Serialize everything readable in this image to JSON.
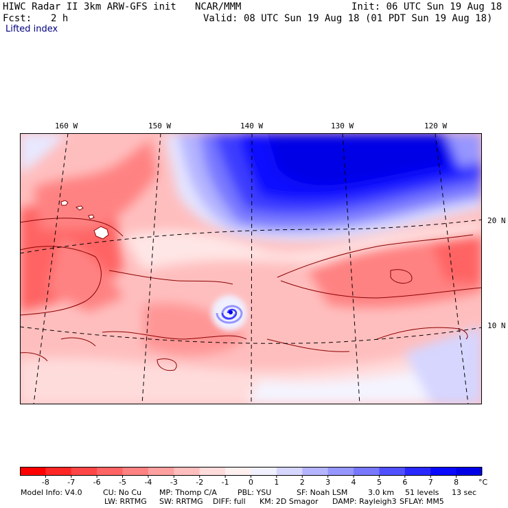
{
  "header": {
    "title": "HIWC Radar II 3km ARW-GFS init",
    "org": "NCAR/MMM",
    "init": "Init: 06 UTC Sun 19 Aug 18",
    "fcst_label": "Fcst:",
    "fcst_value": "2 h",
    "valid": "Valid: 08 UTC Sun 19 Aug 18 (01 PDT Sun 19 Aug 18)",
    "field": "Lifted index"
  },
  "map": {
    "lon_labels": [
      "160 W",
      "150 W",
      "140 W",
      "130 W",
      "120 W"
    ],
    "lat_labels": [
      "20 N",
      "10 N"
    ],
    "colors": {
      "coastline": "#8b0000",
      "grid": "#000000"
    }
  },
  "colorbar": {
    "ticks": [
      "-8",
      "-7",
      "-6",
      "-5",
      "-4",
      "-3",
      "-2",
      "-1",
      "0",
      "1",
      "2",
      "3",
      "4",
      "5",
      "6",
      "7",
      "8"
    ],
    "unit": "°C",
    "colors": [
      "#ff0000",
      "#ff2626",
      "#ff4646",
      "#ff6464",
      "#ff8282",
      "#ffa0a0",
      "#ffbebe",
      "#ffdcdc",
      "#fff0f0",
      "#f0f0ff",
      "#d6d6ff",
      "#b4b4ff",
      "#9696ff",
      "#7878ff",
      "#5050ff",
      "#2828ff",
      "#0a0aff",
      "#0000e6"
    ]
  },
  "footer": {
    "line1": [
      "Model Info: V4.0",
      "CU: No Cu",
      "MP: Thomp C/A",
      "PBL: YSU",
      "SF: Noah LSM",
      "3.0 km",
      "51 levels",
      "13 sec"
    ],
    "line2": [
      "LW: RRTMG",
      "SW: RRTMG",
      "DIFF: full",
      "KM: 2D Smagor",
      "DAMP: Rayleigh3",
      "SFLAY: MM5"
    ]
  }
}
